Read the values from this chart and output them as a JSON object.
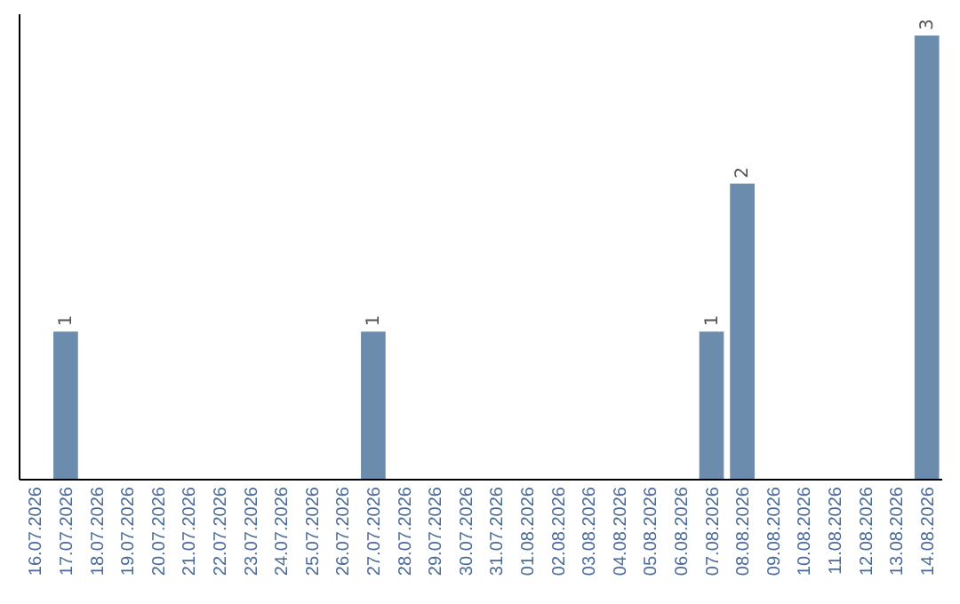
{
  "chart_data": {
    "type": "bar",
    "categories": [
      "16.07.2026",
      "17.07.2026",
      "18.07.2026",
      "19.07.2026",
      "20.07.2026",
      "21.07.2026",
      "22.07.2026",
      "23.07.2026",
      "24.07.2026",
      "25.07.2026",
      "26.07.2026",
      "27.07.2026",
      "28.07.2026",
      "29.07.2026",
      "30.07.2026",
      "31.07.2026",
      "01.08.2026",
      "02.08.2026",
      "03.08.2026",
      "04.08.2026",
      "05.08.2026",
      "06.08.2026",
      "07.08.2026",
      "08.08.2026",
      "09.08.2026",
      "10.08.2026",
      "11.08.2026",
      "12.08.2026",
      "13.08.2026",
      "14.08.2026"
    ],
    "values": [
      0,
      1,
      0,
      0,
      0,
      0,
      0,
      0,
      0,
      0,
      0,
      1,
      0,
      0,
      0,
      0,
      0,
      0,
      0,
      0,
      0,
      0,
      1,
      2,
      0,
      0,
      0,
      0,
      0,
      3
    ],
    "value_labels": [
      null,
      "1",
      null,
      null,
      null,
      null,
      null,
      null,
      null,
      null,
      null,
      "1",
      null,
      null,
      null,
      null,
      null,
      null,
      null,
      null,
      null,
      null,
      "1",
      "2",
      null,
      null,
      null,
      null,
      null,
      "3"
    ],
    "color": "#6b8cac",
    "tick_labels": "x",
    "grid": false
  }
}
